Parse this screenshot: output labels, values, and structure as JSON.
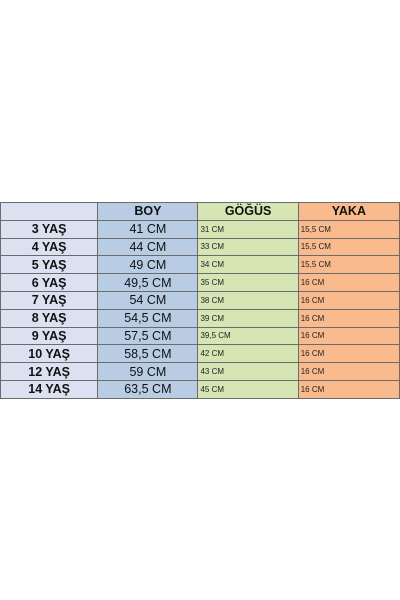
{
  "headers": {
    "age": "",
    "boy": "BOY",
    "gogus": "GÖĞÜS",
    "yaka": "YAKA"
  },
  "rows": [
    {
      "age": "3 YAŞ",
      "boy": "41 CM",
      "gogus": "31 CM",
      "yaka": "15,5 CM"
    },
    {
      "age": "4 YAŞ",
      "boy": "44 CM",
      "gogus": "33 CM",
      "yaka": "15,5 CM"
    },
    {
      "age": "5 YAŞ",
      "boy": "49 CM",
      "gogus": "34 CM",
      "yaka": "15,5 CM"
    },
    {
      "age": "6 YAŞ",
      "boy": "49,5 CM",
      "gogus": "35 CM",
      "yaka": "16 CM"
    },
    {
      "age": "7 YAŞ",
      "boy": "54 CM",
      "gogus": "38 CM",
      "yaka": "16 CM"
    },
    {
      "age": "8 YAŞ",
      "boy": "54,5 CM",
      "gogus": "39 CM",
      "yaka": "16 CM"
    },
    {
      "age": "9 YAŞ",
      "boy": "57,5 CM",
      "gogus": "39,5 CM",
      "yaka": "16 CM"
    },
    {
      "age": "10 YAŞ",
      "boy": "58,5 CM",
      "gogus": "42 CM",
      "yaka": "16 CM"
    },
    {
      "age": "12 YAŞ",
      "boy": "59 CM",
      "gogus": "43 CM",
      "yaka": "16 CM"
    },
    {
      "age": "14 YAŞ",
      "boy": "63,5 CM",
      "gogus": "45 CM",
      "yaka": "16 CM"
    }
  ],
  "colors": {
    "age_column": "#dbe1f0",
    "boy_column": "#b8cde4",
    "gogus_column": "#d5e5b4",
    "yaka_column": "#f9bb8e"
  }
}
